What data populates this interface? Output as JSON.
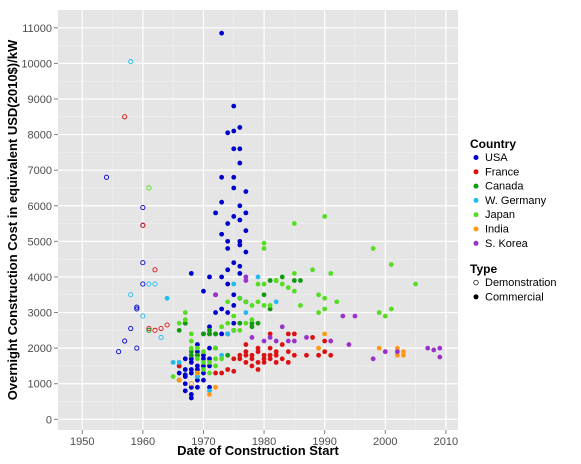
{
  "chart_data": {
    "type": "scatter",
    "title": "",
    "xlabel": "Date of Construction Start",
    "ylabel": "Overnight Construction Cost in equivalent USD(2010$)/kW",
    "xlim": [
      1946,
      2012
    ],
    "ylim": [
      -300,
      11500
    ],
    "x_ticks": [
      1950,
      1960,
      1970,
      1980,
      1990,
      2000,
      2010
    ],
    "y_ticks": [
      0,
      1000,
      2000,
      3000,
      4000,
      5000,
      6000,
      7000,
      8000,
      9000,
      10000,
      11000
    ],
    "grid": true,
    "legend_position": "right",
    "legends": [
      {
        "title": "Country",
        "entries": [
          {
            "label": "USA",
            "color": "#0000cc"
          },
          {
            "label": "France",
            "color": "#dd1111"
          },
          {
            "label": "Canada",
            "color": "#119911"
          },
          {
            "label": "W. Germany",
            "color": "#22bbee"
          },
          {
            "label": "Japan",
            "color": "#55dd22"
          },
          {
            "label": "India",
            "color": "#ff9911"
          },
          {
            "label": "S. Korea",
            "color": "#9933cc"
          }
        ]
      },
      {
        "title": "Type",
        "entries": [
          {
            "label": "Demonstration",
            "marker": "open"
          },
          {
            "label": "Commercial",
            "marker": "filled"
          }
        ]
      }
    ],
    "series": [
      {
        "name": "USA",
        "color": "#0000cc",
        "demonstration": [
          [
            1954,
            6800
          ],
          [
            1956,
            1900
          ],
          [
            1957,
            2200
          ],
          [
            1958,
            2550
          ],
          [
            1959,
            2000
          ],
          [
            1959,
            3100
          ],
          [
            1959,
            3150
          ],
          [
            1960,
            5450
          ],
          [
            1960,
            5950
          ],
          [
            1960,
            4400
          ],
          [
            1960,
            3800
          ]
        ],
        "commercial": [
          [
            1966,
            1500
          ],
          [
            1966,
            1300
          ],
          [
            1966,
            1100
          ],
          [
            1967,
            1700
          ],
          [
            1967,
            1250
          ],
          [
            1967,
            800
          ],
          [
            1967,
            1000
          ],
          [
            1967,
            1200
          ],
          [
            1967,
            1400
          ],
          [
            1967,
            2700
          ],
          [
            1968,
            600
          ],
          [
            1968,
            700
          ],
          [
            1968,
            900
          ],
          [
            1968,
            1300
          ],
          [
            1968,
            1400
          ],
          [
            1968,
            1600
          ],
          [
            1968,
            1700
          ],
          [
            1968,
            4100
          ],
          [
            1969,
            900
          ],
          [
            1969,
            1100
          ],
          [
            1969,
            1200
          ],
          [
            1969,
            1400
          ],
          [
            1969,
            1500
          ],
          [
            1969,
            1800
          ],
          [
            1969,
            1900
          ],
          [
            1969,
            2100
          ],
          [
            1970,
            1100
          ],
          [
            1970,
            1300
          ],
          [
            1970,
            1500
          ],
          [
            1970,
            1700
          ],
          [
            1970,
            1800
          ],
          [
            1970,
            2400
          ],
          [
            1970,
            3600
          ],
          [
            1971,
            900
          ],
          [
            1971,
            1500
          ],
          [
            1971,
            1700
          ],
          [
            1971,
            2000
          ],
          [
            1971,
            2400
          ],
          [
            1971,
            2600
          ],
          [
            1971,
            4000
          ],
          [
            1972,
            2000
          ],
          [
            1972,
            2400
          ],
          [
            1972,
            3000
          ],
          [
            1972,
            3500
          ],
          [
            1972,
            5800
          ],
          [
            1973,
            2400
          ],
          [
            1973,
            3100
          ],
          [
            1973,
            4000
          ],
          [
            1973,
            5200
          ],
          [
            1973,
            6100
          ],
          [
            1973,
            6800
          ],
          [
            1973,
            10850
          ],
          [
            1974,
            2400
          ],
          [
            1974,
            3000
          ],
          [
            1974,
            3800
          ],
          [
            1974,
            4200
          ],
          [
            1974,
            4800
          ],
          [
            1974,
            5000
          ],
          [
            1974,
            5500
          ],
          [
            1974,
            8050
          ],
          [
            1975,
            2500
          ],
          [
            1975,
            2700
          ],
          [
            1975,
            3200
          ],
          [
            1975,
            3500
          ],
          [
            1975,
            4400
          ],
          [
            1975,
            5700
          ],
          [
            1975,
            6500
          ],
          [
            1975,
            6800
          ],
          [
            1975,
            7600
          ],
          [
            1975,
            8100
          ],
          [
            1975,
            8800
          ],
          [
            1976,
            3400
          ],
          [
            1976,
            4100
          ],
          [
            1976,
            4300
          ],
          [
            1976,
            4900
          ],
          [
            1976,
            5000
          ],
          [
            1976,
            5600
          ],
          [
            1976,
            6000
          ],
          [
            1976,
            7200
          ],
          [
            1976,
            7600
          ],
          [
            1976,
            8200
          ],
          [
            1977,
            3300
          ],
          [
            1977,
            4700
          ],
          [
            1977,
            5300
          ],
          [
            1977,
            5800
          ],
          [
            1977,
            6400
          ]
        ]
      },
      {
        "name": "France",
        "color": "#dd1111",
        "demonstration": [
          [
            1957,
            8500
          ],
          [
            1960,
            5450
          ],
          [
            1961,
            2550
          ],
          [
            1962,
            2500
          ],
          [
            1962,
            4200
          ],
          [
            1963,
            2550
          ],
          [
            1964,
            2650
          ]
        ],
        "commercial": [
          [
            1966,
            1500
          ],
          [
            1972,
            1300
          ],
          [
            1973,
            1300
          ],
          [
            1974,
            1400
          ],
          [
            1975,
            1350
          ],
          [
            1975,
            1700
          ],
          [
            1976,
            1700
          ],
          [
            1976,
            1800
          ],
          [
            1977,
            1600
          ],
          [
            1977,
            1800
          ],
          [
            1977,
            1900
          ],
          [
            1977,
            2100
          ],
          [
            1978,
            1500
          ],
          [
            1978,
            1700
          ],
          [
            1978,
            1800
          ],
          [
            1979,
            1400
          ],
          [
            1979,
            1600
          ],
          [
            1979,
            1900
          ],
          [
            1979,
            2000
          ],
          [
            1980,
            1600
          ],
          [
            1980,
            1700
          ],
          [
            1980,
            1800
          ],
          [
            1981,
            1700
          ],
          [
            1981,
            1800
          ],
          [
            1981,
            2000
          ],
          [
            1981,
            2400
          ],
          [
            1982,
            1600
          ],
          [
            1982,
            1800
          ],
          [
            1982,
            1900
          ],
          [
            1983,
            1700
          ],
          [
            1983,
            2100
          ],
          [
            1984,
            1600
          ],
          [
            1984,
            1900
          ],
          [
            1984,
            2400
          ],
          [
            1985,
            1800
          ],
          [
            1985,
            2400
          ],
          [
            1987,
            1800
          ],
          [
            1988,
            2300
          ],
          [
            1989,
            1800
          ],
          [
            1990,
            1900
          ],
          [
            1990,
            2200
          ],
          [
            1991,
            1800
          ]
        ]
      },
      {
        "name": "Canada",
        "color": "#119911",
        "demonstration": [
          [
            1961,
            2500
          ]
        ],
        "commercial": [
          [
            1966,
            2500
          ],
          [
            1967,
            2700
          ],
          [
            1968,
            1800
          ],
          [
            1968,
            1900
          ],
          [
            1969,
            1800
          ],
          [
            1970,
            2400
          ],
          [
            1971,
            2400
          ],
          [
            1971,
            2500
          ],
          [
            1972,
            2400
          ],
          [
            1974,
            1800
          ],
          [
            1976,
            2700
          ],
          [
            1978,
            2600
          ],
          [
            1978,
            2700
          ],
          [
            1979,
            2700
          ],
          [
            1980,
            3500
          ],
          [
            1981,
            3100
          ],
          [
            1981,
            3900
          ],
          [
            1982,
            3900
          ],
          [
            1983,
            4000
          ],
          [
            1985,
            3900
          ],
          [
            1986,
            3900
          ]
        ]
      },
      {
        "name": "W. Germany",
        "color": "#22bbee",
        "demonstration": [
          [
            1958,
            10050
          ],
          [
            1958,
            3500
          ],
          [
            1960,
            2900
          ],
          [
            1961,
            3800
          ],
          [
            1962,
            3800
          ],
          [
            1963,
            2300
          ]
        ],
        "commercial": [
          [
            1964,
            3400
          ],
          [
            1965,
            1600
          ],
          [
            1966,
            1600
          ],
          [
            1969,
            1200
          ],
          [
            1971,
            800
          ],
          [
            1973,
            1800
          ],
          [
            1974,
            2400
          ],
          [
            1975,
            3800
          ],
          [
            1977,
            3000
          ],
          [
            1979,
            4000
          ],
          [
            1982,
            3300
          ]
        ]
      },
      {
        "name": "Japan",
        "color": "#55dd22",
        "demonstration": [
          [
            1961,
            6500
          ]
        ],
        "commercial": [
          [
            1965,
            1200
          ],
          [
            1966,
            2700
          ],
          [
            1967,
            2800
          ],
          [
            1967,
            3000
          ],
          [
            1968,
            2000
          ],
          [
            1968,
            2200
          ],
          [
            1968,
            2400
          ],
          [
            1969,
            1300
          ],
          [
            1969,
            1700
          ],
          [
            1969,
            2000
          ],
          [
            1970,
            1400
          ],
          [
            1970,
            1600
          ],
          [
            1970,
            1900
          ],
          [
            1971,
            1300
          ],
          [
            1971,
            1600
          ],
          [
            1972,
            1500
          ],
          [
            1972,
            1700
          ],
          [
            1972,
            2000
          ],
          [
            1973,
            1700
          ],
          [
            1973,
            2600
          ],
          [
            1974,
            2700
          ],
          [
            1974,
            3300
          ],
          [
            1975,
            2500
          ],
          [
            1975,
            2900
          ],
          [
            1976,
            2500
          ],
          [
            1976,
            3400
          ],
          [
            1977,
            2700
          ],
          [
            1977,
            3300
          ],
          [
            1978,
            2800
          ],
          [
            1978,
            3200
          ],
          [
            1979,
            3300
          ],
          [
            1979,
            3800
          ],
          [
            1980,
            4950
          ],
          [
            1980,
            4800
          ],
          [
            1980,
            3800
          ],
          [
            1980,
            3200
          ],
          [
            1981,
            3200
          ],
          [
            1982,
            3900
          ],
          [
            1983,
            3800
          ],
          [
            1984,
            3700
          ],
          [
            1985,
            5500
          ],
          [
            1985,
            4100
          ],
          [
            1985,
            3600
          ],
          [
            1986,
            3200
          ],
          [
            1988,
            4200
          ],
          [
            1989,
            3500
          ],
          [
            1989,
            3000
          ],
          [
            1990,
            5700
          ],
          [
            1990,
            3100
          ],
          [
            1990,
            3400
          ],
          [
            1991,
            4100
          ],
          [
            1992,
            3300
          ],
          [
            1998,
            4800
          ],
          [
            1999,
            3000
          ],
          [
            2000,
            2900
          ],
          [
            2001,
            3100
          ],
          [
            2001,
            4350
          ],
          [
            2005,
            3800
          ]
        ]
      },
      {
        "name": "India",
        "color": "#ff9911",
        "demonstration": [
          [
            1968,
            1000
          ]
        ],
        "commercial": [
          [
            1966,
            1100
          ],
          [
            1969,
            1300
          ],
          [
            1971,
            700
          ],
          [
            1972,
            900
          ],
          [
            1989,
            2000
          ],
          [
            1990,
            2400
          ],
          [
            1991,
            2200
          ],
          [
            1999,
            2000
          ],
          [
            2000,
            1900
          ],
          [
            2002,
            2000
          ],
          [
            2002,
            1800
          ],
          [
            2003,
            1900
          ],
          [
            2003,
            1800
          ]
        ]
      },
      {
        "name": "S. Korea",
        "color": "#9933cc",
        "demonstration": [],
        "commercial": [
          [
            1972,
            3500
          ],
          [
            1977,
            3900
          ],
          [
            1977,
            4000
          ],
          [
            1978,
            2300
          ],
          [
            1980,
            2200
          ],
          [
            1981,
            2300
          ],
          [
            1982,
            2200
          ],
          [
            1983,
            2600
          ],
          [
            1984,
            2200
          ],
          [
            1985,
            2200
          ],
          [
            1987,
            2300
          ],
          [
            1991,
            2200
          ],
          [
            1993,
            2900
          ],
          [
            1994,
            2100
          ],
          [
            1995,
            2900
          ],
          [
            1998,
            1700
          ],
          [
            2000,
            1900
          ],
          [
            2002,
            1900
          ],
          [
            2007,
            2000
          ],
          [
            2008,
            1950
          ],
          [
            2009,
            2000
          ],
          [
            2009,
            1750
          ]
        ]
      }
    ]
  }
}
